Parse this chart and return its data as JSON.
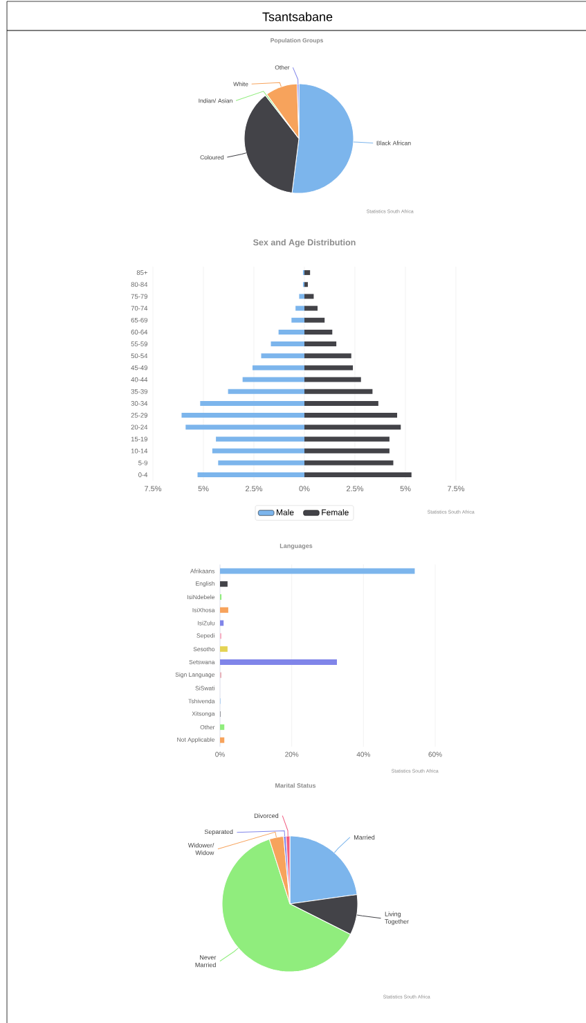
{
  "chart_data": [
    {
      "type": "pie",
      "title": "Tsantsabane",
      "subtitle": "Population Groups",
      "categories": [
        "Black African",
        "Coloured",
        "Indian/ Asian",
        "White",
        "Other"
      ],
      "values": [
        52,
        37.5,
        0.5,
        9.5,
        0.5
      ],
      "colors": [
        "#7cb5ec",
        "#434348",
        "#90ed7d",
        "#f7a35c",
        "#8085e9"
      ],
      "annotations": [
        "Statistics South Africa"
      ]
    },
    {
      "type": "bar",
      "title": "Sex and Age Distribution",
      "orientation": "horizontal",
      "categories": [
        "85+",
        "80-84",
        "75-79",
        "70-74",
        "65-69",
        "60-64",
        "55-59",
        "50-54",
        "45-49",
        "40-44",
        "35-39",
        "30-34",
        "25-29",
        "20-24",
        "15-19",
        "10-14",
        "5-9",
        "0-4"
      ],
      "series": [
        {
          "name": "Male",
          "color": "#7cb5ec",
          "values": [
            -0.07,
            -0.07,
            -0.26,
            -0.44,
            -0.64,
            -1.28,
            -1.66,
            -2.14,
            -2.57,
            -3.06,
            -3.78,
            -5.16,
            -6.08,
            -5.88,
            -4.38,
            -4.56,
            -4.27,
            -5.29
          ]
        },
        {
          "name": "Female",
          "color": "#434348",
          "values": [
            0.28,
            0.17,
            0.46,
            0.65,
            1.0,
            1.38,
            1.58,
            2.32,
            2.4,
            2.8,
            3.37,
            3.66,
            4.59,
            4.77,
            4.21,
            4.21,
            4.4,
            5.3
          ]
        }
      ],
      "xlim": [
        -7.5,
        7.5
      ],
      "xticks": [
        {
          "value": -7.5,
          "label": "7.5%"
        },
        {
          "value": -5,
          "label": "5%"
        },
        {
          "value": -2.5,
          "label": "2.5%"
        },
        {
          "value": 0,
          "label": "0%"
        },
        {
          "value": 2.5,
          "label": "2.5%"
        },
        {
          "value": 5,
          "label": "5%"
        },
        {
          "value": 7.5,
          "label": "7.5%"
        }
      ],
      "stacked": true,
      "grid": "x",
      "legend": "bottom",
      "annotations": [
        "Statistics South Africa"
      ]
    },
    {
      "type": "bar",
      "title": "Languages",
      "orientation": "horizontal",
      "categories": [
        "Afrikaans",
        "English",
        "IsiNdebele",
        "IsiXhosa",
        "IsiZulu",
        "Sepedi",
        "Sesotho",
        "Setswana",
        "Sign Language",
        "SiSwati",
        "Tshivenda",
        "Xitsonga",
        "Other",
        "Not Applicable"
      ],
      "values": [
        54.3,
        2.1,
        0.4,
        2.3,
        1.0,
        0.4,
        2.1,
        32.6,
        0.4,
        null,
        0.1,
        0.1,
        1.2,
        1.2
      ],
      "colors": [
        "#7cb5ec",
        "#434348",
        "#90ed7d",
        "#f7a35c",
        "#8085e9",
        "#f7b0c4",
        "#e4d354",
        "#8085e9",
        "#e8b4bc",
        "#91e8e1",
        "#7cb5ec",
        "#434348",
        "#90ed7d",
        "#f7a35c"
      ],
      "xlim": [
        0,
        60
      ],
      "xticks": [
        {
          "value": 0,
          "label": "0%"
        },
        {
          "value": 20,
          "label": "20%"
        },
        {
          "value": 40,
          "label": "40%"
        },
        {
          "value": 60,
          "label": "60%"
        }
      ],
      "grid": "x",
      "annotations": [
        "Statistics South Africa"
      ]
    },
    {
      "type": "pie",
      "title": "Marital Status",
      "categories": [
        "Married",
        "Living Together",
        "Never Married",
        "Widower/ Widow",
        "Separated",
        "Divorced"
      ],
      "values": [
        22.8,
        9.6,
        62.7,
        3.4,
        0.6,
        0.9
      ],
      "colors": [
        "#7cb5ec",
        "#434348",
        "#90ed7d",
        "#f7a35c",
        "#8085e9",
        "#f15c80"
      ],
      "annotations": [
        "Statistics South Africa"
      ]
    }
  ]
}
